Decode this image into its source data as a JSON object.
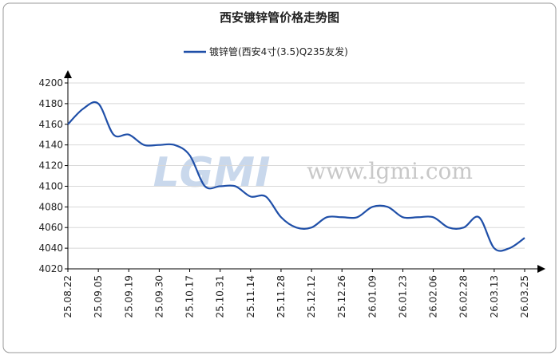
{
  "chart_data": {
    "type": "line",
    "title": "西安镀锌管价格走势图",
    "watermark": "www.lgmi.com",
    "logo": "LGMI",
    "categories": [
      "25.08.22",
      null,
      "25.09.05",
      null,
      "25.09.19",
      null,
      "25.09.30",
      null,
      "25.10.17",
      null,
      "25.10.31",
      null,
      "25.11.14",
      null,
      "25.11.28",
      null,
      "25.12.12",
      null,
      "25.12.26",
      null,
      "26.01.09",
      null,
      "26.01.23",
      null,
      "26.02.06",
      null,
      "26.02.28",
      null,
      "26.03.13",
      null,
      "26.03.25"
    ],
    "series": [
      {
        "name": "镀锌管(西安4寸(3.5)Q235友发)",
        "color": "#1f4fa8",
        "values": [
          4160,
          4175,
          4180,
          4150,
          4150,
          4140,
          4140,
          4140,
          4130,
          4100,
          4100,
          4100,
          4090,
          4090,
          4070,
          4060,
          4060,
          4070,
          4070,
          4070,
          4080,
          4080,
          4070,
          4070,
          4070,
          4060,
          4060,
          4070,
          4040,
          4040,
          4050
        ]
      }
    ],
    "ylim": [
      4020,
      4200
    ],
    "yticks": [
      4020,
      4040,
      4060,
      4080,
      4100,
      4120,
      4140,
      4160,
      4180,
      4200
    ],
    "grid": true,
    "legend": "top"
  }
}
